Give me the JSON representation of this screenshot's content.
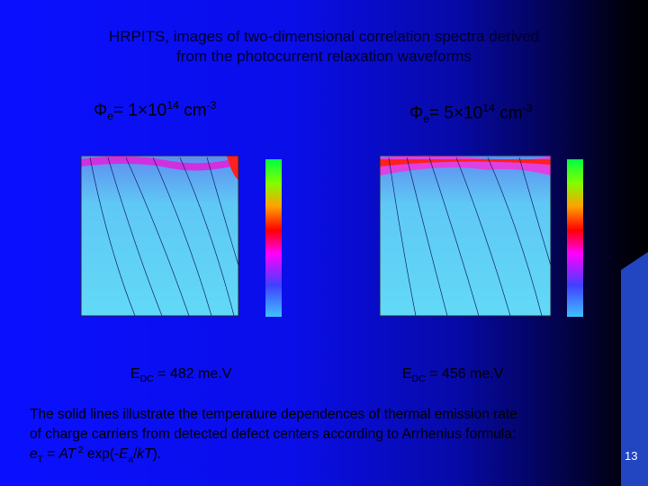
{
  "title": {
    "line1": "HRPITS, images of two-dimensional correlation spectra derived",
    "line2": "from the photocurrent relaxation waveforms"
  },
  "left_panel": {
    "label": {
      "base": "Φ",
      "sub": "e",
      "mid": "= 1×10",
      "sup": "14",
      "unit": " cm",
      "unit_sup": "-3"
    },
    "energy": {
      "base": "E",
      "sub": "DC",
      "rest": " = 482 me.V"
    }
  },
  "right_panel": {
    "label": {
      "base": "Φ",
      "sub": "e",
      "mid": "= 5×10",
      "sup": "14",
      "unit": " cm",
      "unit_sup": "-3"
    },
    "energy": {
      "base": "E",
      "sub": "DC",
      "rest": " = 456 me.V"
    }
  },
  "body": {
    "line1": "The solid lines illustrate the temperature dependences of thermal emission rate",
    "line2": "of  charge carriers from detected defect centers according to Arrhenius formula:",
    "formula": {
      "e": "e",
      "e_sub": "T",
      "eq": " = ",
      "A": "AT",
      "pow": " 2",
      "exp": " exp(-",
      "E": "E",
      "E_sub": "a",
      "slash": "/",
      "kT": "kT",
      "end": ")."
    }
  },
  "page_number": "13"
}
